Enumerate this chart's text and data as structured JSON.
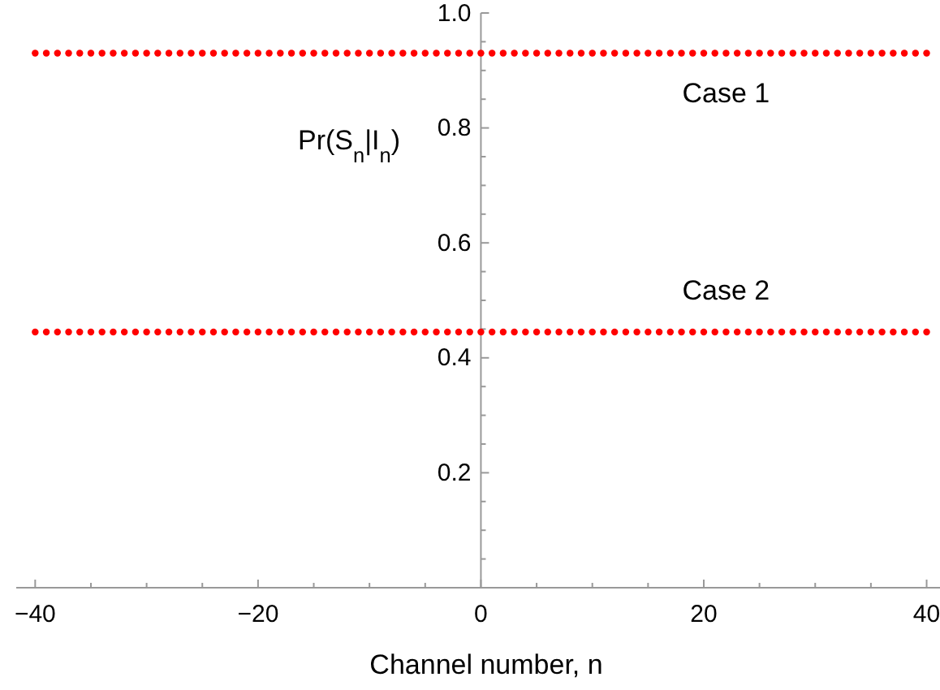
{
  "chart_data": {
    "type": "scatter",
    "xlabel": "Channel number, n",
    "ylabel": "Pr(S$_{n}$|I$_{n}$)",
    "x": [
      -40,
      -39,
      -38,
      -37,
      -36,
      -35,
      -34,
      -33,
      -32,
      -31,
      -30,
      -29,
      -28,
      -27,
      -26,
      -25,
      -24,
      -23,
      -22,
      -21,
      -20,
      -19,
      -18,
      -17,
      -16,
      -15,
      -14,
      -13,
      -12,
      -11,
      -10,
      -9,
      -8,
      -7,
      -6,
      -5,
      -4,
      -3,
      -2,
      -1,
      0,
      1,
      2,
      3,
      4,
      5,
      6,
      7,
      8,
      9,
      10,
      11,
      12,
      13,
      14,
      15,
      16,
      17,
      18,
      19,
      20,
      21,
      22,
      23,
      24,
      25,
      26,
      27,
      28,
      29,
      30,
      31,
      32,
      33,
      34,
      35,
      36,
      37,
      38,
      39,
      40
    ],
    "series": [
      {
        "name": "Case 1",
        "color": "#ff0000",
        "values": [
          0.93,
          0.93,
          0.93,
          0.93,
          0.93,
          0.93,
          0.93,
          0.93,
          0.93,
          0.93,
          0.93,
          0.93,
          0.93,
          0.93,
          0.93,
          0.93,
          0.93,
          0.93,
          0.93,
          0.93,
          0.93,
          0.93,
          0.93,
          0.93,
          0.93,
          0.93,
          0.93,
          0.93,
          0.93,
          0.93,
          0.93,
          0.93,
          0.93,
          0.93,
          0.93,
          0.93,
          0.93,
          0.93,
          0.93,
          0.93,
          0.93,
          0.93,
          0.93,
          0.93,
          0.93,
          0.93,
          0.93,
          0.93,
          0.93,
          0.93,
          0.93,
          0.93,
          0.93,
          0.93,
          0.93,
          0.93,
          0.93,
          0.93,
          0.93,
          0.93,
          0.93,
          0.93,
          0.93,
          0.93,
          0.93,
          0.93,
          0.93,
          0.93,
          0.93,
          0.93,
          0.93,
          0.93,
          0.93,
          0.93,
          0.93,
          0.93,
          0.93,
          0.93,
          0.93,
          0.93,
          0.93
        ]
      },
      {
        "name": "Case 2",
        "color": "#ff0000",
        "values": [
          0.445,
          0.445,
          0.445,
          0.445,
          0.445,
          0.445,
          0.445,
          0.445,
          0.445,
          0.445,
          0.445,
          0.445,
          0.445,
          0.445,
          0.445,
          0.445,
          0.445,
          0.445,
          0.445,
          0.445,
          0.445,
          0.445,
          0.445,
          0.445,
          0.445,
          0.445,
          0.445,
          0.445,
          0.445,
          0.445,
          0.445,
          0.445,
          0.445,
          0.445,
          0.445,
          0.445,
          0.445,
          0.445,
          0.445,
          0.445,
          0.445,
          0.445,
          0.445,
          0.445,
          0.445,
          0.445,
          0.445,
          0.445,
          0.445,
          0.445,
          0.445,
          0.445,
          0.445,
          0.445,
          0.445,
          0.445,
          0.445,
          0.445,
          0.445,
          0.445,
          0.445,
          0.445,
          0.445,
          0.445,
          0.445,
          0.445,
          0.445,
          0.445,
          0.445,
          0.445,
          0.445,
          0.445,
          0.445,
          0.445,
          0.445,
          0.445,
          0.445,
          0.445,
          0.445,
          0.445,
          0.445
        ]
      }
    ],
    "marker": "circle",
    "xlim": [
      -41.7,
      41.2
    ],
    "ylim": [
      0,
      1.0
    ],
    "xticks": [
      -40,
      {
        "value": -35,
        "label": null
      },
      {
        "value": -30,
        "label": null
      },
      {
        "value": -25,
        "label": null
      },
      -20,
      {
        "value": -15,
        "label": null
      },
      {
        "value": -10,
        "label": null
      },
      {
        "value": -5,
        "label": null
      },
      0,
      {
        "value": 5,
        "label": null
      },
      {
        "value": 10,
        "label": null
      },
      {
        "value": 15,
        "label": null
      },
      20,
      {
        "value": 25,
        "label": null
      },
      {
        "value": 30,
        "label": null
      },
      {
        "value": 35,
        "label": null
      },
      40
    ],
    "yticks": [
      {
        "value": 0.05,
        "label": null
      },
      {
        "value": 0.1,
        "label": null
      },
      {
        "value": 0.15,
        "label": null
      },
      0.2,
      {
        "value": 0.25,
        "label": null
      },
      {
        "value": 0.3,
        "label": null
      },
      {
        "value": 0.35,
        "label": null
      },
      0.4,
      {
        "value": 0.45,
        "label": null
      },
      {
        "value": 0.5,
        "label": null
      },
      {
        "value": 0.55,
        "label": null
      },
      0.6,
      {
        "value": 0.65,
        "label": null
      },
      {
        "value": 0.7,
        "label": null
      },
      {
        "value": 0.75,
        "label": null
      },
      0.8,
      {
        "value": 0.85,
        "label": null
      },
      {
        "value": 0.9,
        "label": null
      },
      {
        "value": 0.95,
        "label": null
      },
      {
        "value": 1,
        "label": "1.0"
      }
    ]
  }
}
